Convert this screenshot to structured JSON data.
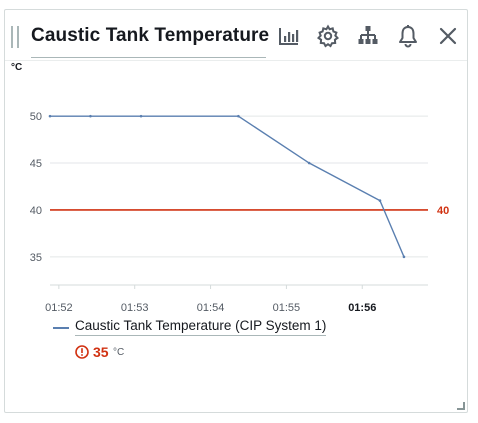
{
  "widget": {
    "title": "Caustic Tank Temperature",
    "unit": "°C",
    "toolbar": {
      "icons": [
        "bar-chart-icon",
        "settings-gear-icon",
        "hierarchy-icon",
        "bell-icon",
        "close-icon"
      ]
    }
  },
  "legend": {
    "label": "Caustic Tank Temperature (CIP System 1)",
    "latest_value": "35",
    "latest_unit": "°C",
    "status_color": "#d13212",
    "series_color": "#5a7fb0"
  },
  "chart_data": {
    "type": "line",
    "xlabel": "",
    "ylabel": "°C",
    "x_ticks": [
      "01:52",
      "01:53",
      "01:54",
      "01:55",
      "01:56"
    ],
    "y_ticks": [
      35,
      40,
      45,
      50
    ],
    "xlim": [
      "01:51:53",
      "01:56:52"
    ],
    "ylim": [
      32,
      53
    ],
    "series": [
      {
        "name": "Caustic Tank Temperature (CIP System 1)",
        "color": "#5a7fb0",
        "points": [
          {
            "x": "01:51:53",
            "y": 50
          },
          {
            "x": "01:52:25",
            "y": 50
          },
          {
            "x": "01:53:05",
            "y": 50
          },
          {
            "x": "01:54:22",
            "y": 50
          },
          {
            "x": "01:55:18",
            "y": 45
          },
          {
            "x": "01:56:14",
            "y": 41
          },
          {
            "x": "01:56:33",
            "y": 35
          }
        ]
      }
    ],
    "threshold": {
      "value": 40,
      "label": "40",
      "color": "#d13212"
    },
    "grid": true
  }
}
